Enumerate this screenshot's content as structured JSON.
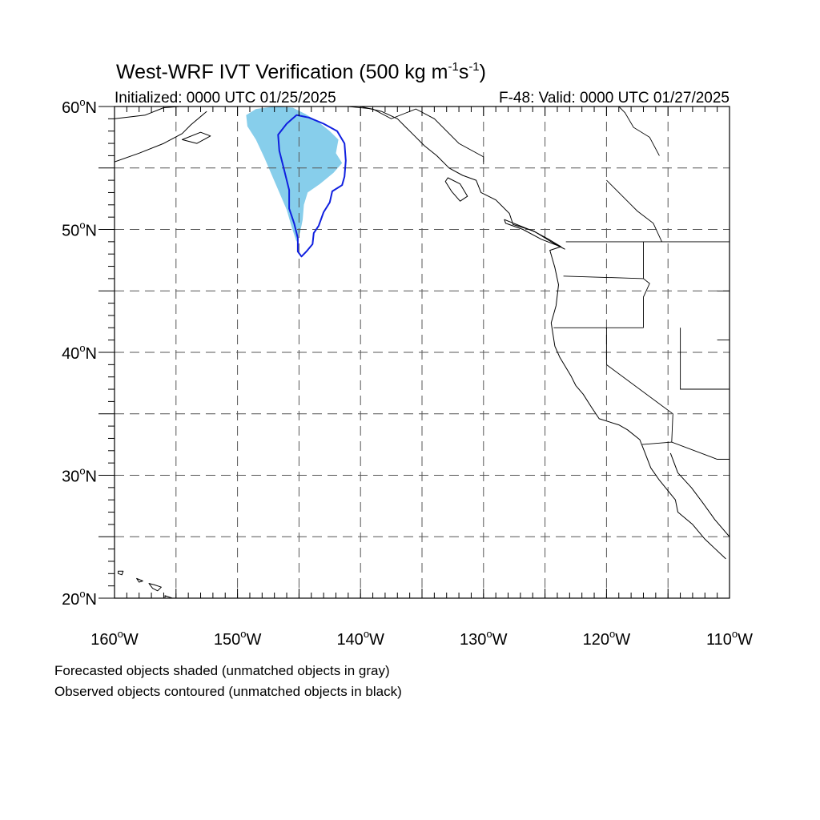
{
  "title": {
    "main": "West-WRF IVT Verification (500 kg m",
    "sup1": "-1",
    "mid": "s",
    "sup2": "-1",
    "end": ")"
  },
  "subtitle_left": "Initialized: 0000 UTC 01/25/2025",
  "subtitle_right": "F-48: Valid: 0000 UTC 01/27/2025",
  "footer": [
    "Forecasted objects shaded (unmatched objects in gray)",
    "Observed objects contoured (unmatched objects in black)"
  ],
  "chart_data": {
    "type": "map",
    "projection": "cylindrical-equidistant",
    "lon_range": [
      -160,
      -110
    ],
    "lat_range": [
      20,
      60
    ],
    "lon_ticks": [
      {
        "value": -160,
        "label": "160°W"
      },
      {
        "value": -150,
        "label": "150°W"
      },
      {
        "value": -140,
        "label": "140°W"
      },
      {
        "value": -130,
        "label": "130°W"
      },
      {
        "value": -120,
        "label": "120°W"
      },
      {
        "value": -110,
        "label": "110°W"
      }
    ],
    "lat_ticks": [
      {
        "value": 20,
        "label": "20°N"
      },
      {
        "value": 30,
        "label": "30°N"
      },
      {
        "value": 40,
        "label": "40°N"
      },
      {
        "value": 50,
        "label": "50°N"
      },
      {
        "value": 60,
        "label": "60°N"
      }
    ],
    "gridlines_lon": [
      -155,
      -150,
      -145,
      -140,
      -135,
      -130,
      -125,
      -120,
      -115
    ],
    "gridlines_lat": [
      25,
      30,
      35,
      40,
      45,
      50,
      55
    ],
    "grid": true,
    "colors": {
      "forecast_fill": "#87ceeb",
      "observed_contour": "#1020e0",
      "grid": "#555555",
      "coast": "#000000"
    },
    "forecast_object": [
      [
        -148.5,
        59.8
      ],
      [
        -147.0,
        60.0
      ],
      [
        -145.5,
        59.9
      ],
      [
        -144.5,
        59.4
      ],
      [
        -143.5,
        58.8
      ],
      [
        -142.5,
        58.0
      ],
      [
        -141.8,
        57.3
      ],
      [
        -142.0,
        56.2
      ],
      [
        -141.5,
        55.4
      ],
      [
        -142.2,
        54.6
      ],
      [
        -143.3,
        53.7
      ],
      [
        -144.3,
        53.0
      ],
      [
        -144.6,
        52.0
      ],
      [
        -144.7,
        50.8
      ],
      [
        -144.9,
        49.8
      ],
      [
        -145.2,
        49.0
      ],
      [
        -145.6,
        50.2
      ],
      [
        -146.0,
        51.6
      ],
      [
        -146.6,
        53.0
      ],
      [
        -147.2,
        54.4
      ],
      [
        -147.8,
        55.8
      ],
      [
        -148.5,
        57.3
      ],
      [
        -149.2,
        58.4
      ],
      [
        -149.3,
        59.3
      ]
    ],
    "observed_object": [
      [
        -146.0,
        58.6
      ],
      [
        -145.2,
        59.3
      ],
      [
        -144.2,
        59.1
      ],
      [
        -143.0,
        58.6
      ],
      [
        -141.9,
        58.0
      ],
      [
        -141.3,
        57.0
      ],
      [
        -141.2,
        55.6
      ],
      [
        -141.3,
        54.3
      ],
      [
        -141.5,
        53.6
      ],
      [
        -142.3,
        53.1
      ],
      [
        -142.5,
        52.2
      ],
      [
        -143.0,
        51.4
      ],
      [
        -143.4,
        50.3
      ],
      [
        -143.8,
        49.7
      ],
      [
        -143.9,
        48.8
      ],
      [
        -144.4,
        48.2
      ],
      [
        -144.8,
        47.8
      ],
      [
        -145.1,
        48.2
      ],
      [
        -145.1,
        49.3
      ],
      [
        -145.4,
        50.5
      ],
      [
        -145.8,
        51.7
      ],
      [
        -145.8,
        53.2
      ],
      [
        -146.2,
        54.8
      ],
      [
        -146.6,
        56.4
      ],
      [
        -146.7,
        57.7
      ]
    ],
    "coastline": [
      [
        -140.0,
        60.0
      ],
      [
        -138.3,
        59.6
      ],
      [
        -137.0,
        59.0
      ],
      [
        -136.3,
        58.3
      ],
      [
        -135.6,
        57.6
      ],
      [
        -134.8,
        56.8
      ],
      [
        -133.8,
        56.0
      ],
      [
        -132.8,
        55.0
      ],
      [
        -131.7,
        54.4
      ],
      [
        -130.6,
        54.0
      ],
      [
        -130.2,
        53.0
      ],
      [
        -129.0,
        52.4
      ],
      [
        -127.9,
        51.3
      ],
      [
        -127.6,
        50.4
      ],
      [
        -126.0,
        49.9
      ],
      [
        -124.7,
        49.2
      ],
      [
        -123.7,
        48.6
      ],
      [
        -124.6,
        48.3
      ],
      [
        -124.2,
        46.9
      ],
      [
        -123.9,
        45.5
      ],
      [
        -124.1,
        43.8
      ],
      [
        -124.5,
        42.4
      ],
      [
        -124.2,
        40.5
      ],
      [
        -123.8,
        39.6
      ],
      [
        -122.9,
        38.1
      ],
      [
        -122.5,
        37.3
      ],
      [
        -121.9,
        36.6
      ],
      [
        -121.2,
        35.5
      ],
      [
        -120.6,
        34.6
      ],
      [
        -119.0,
        34.1
      ],
      [
        -118.3,
        33.7
      ],
      [
        -117.3,
        32.9
      ],
      [
        -116.9,
        31.9
      ],
      [
        -116.4,
        30.6
      ],
      [
        -115.7,
        29.6
      ],
      [
        -114.4,
        28.0
      ],
      [
        -114.2,
        27.0
      ],
      [
        -113.0,
        26.0
      ],
      [
        -112.0,
        24.8
      ],
      [
        -110.3,
        23.2
      ]
    ],
    "gulf_coast": [
      [
        -114.8,
        31.8
      ],
      [
        -114.2,
        30.2
      ],
      [
        -113.1,
        29.0
      ],
      [
        -112.2,
        27.8
      ],
      [
        -111.2,
        26.4
      ],
      [
        -110.0,
        25.0
      ]
    ],
    "vancouver_island": [
      [
        -128.3,
        50.8
      ],
      [
        -127.3,
        50.4
      ],
      [
        -125.8,
        49.8
      ],
      [
        -124.5,
        49.0
      ],
      [
        -123.4,
        48.4
      ],
      [
        -124.0,
        48.7
      ],
      [
        -125.3,
        49.2
      ],
      [
        -126.8,
        50.0
      ],
      [
        -128.2,
        50.5
      ]
    ],
    "haida_gwaii": [
      [
        -132.9,
        54.2
      ],
      [
        -131.9,
        53.7
      ],
      [
        -131.3,
        52.7
      ],
      [
        -131.9,
        52.3
      ],
      [
        -132.6,
        53.1
      ],
      [
        -133.1,
        53.9
      ]
    ],
    "alaska_sw_coast": [
      [
        -160.0,
        59.0
      ],
      [
        -157.5,
        59.3
      ],
      [
        -156.0,
        59.9
      ],
      [
        -154.7,
        60.0
      ]
    ],
    "kodiak": [
      [
        -154.5,
        57.3
      ],
      [
        -153.0,
        57.9
      ],
      [
        -152.2,
        57.6
      ],
      [
        -153.3,
        57.0
      ]
    ],
    "alaska_peninsula": [
      [
        -160.0,
        55.5
      ],
      [
        -158.0,
        56.2
      ],
      [
        -156.0,
        57.0
      ],
      [
        -154.5,
        57.8
      ],
      [
        -153.8,
        58.5
      ],
      [
        -152.5,
        59.6
      ]
    ],
    "hawaii": [
      [
        [
          -159.7,
          22.2
        ],
        [
          -159.3,
          22.2
        ],
        [
          -159.4,
          21.9
        ],
        [
          -159.7,
          22.0
        ]
      ],
      [
        [
          -158.2,
          21.6
        ],
        [
          -157.7,
          21.4
        ],
        [
          -158.0,
          21.3
        ]
      ],
      [
        [
          -157.2,
          21.2
        ],
        [
          -156.8,
          21.1
        ],
        [
          -156.2,
          20.9
        ],
        [
          -156.5,
          20.6
        ],
        [
          -156.9,
          20.8
        ]
      ],
      [
        [
          -155.9,
          20.2
        ],
        [
          -155.0,
          19.9
        ],
        [
          -154.8,
          19.5
        ],
        [
          -155.6,
          18.9
        ],
        [
          -155.9,
          19.3
        ]
      ]
    ],
    "borders": [
      [
        [
          -123.3,
          49.0
        ],
        [
          -110.0,
          49.0
        ]
      ],
      [
        [
          -124.3,
          42.0
        ],
        [
          -117.0,
          42.0
        ]
      ],
      [
        [
          -117.0,
          42.0
        ],
        [
          -117.0,
          44.5
        ],
        [
          -116.5,
          45.6
        ],
        [
          -117.0,
          46.0
        ],
        [
          -123.5,
          46.2
        ]
      ],
      [
        [
          -117.0,
          49.0
        ],
        [
          -117.0,
          46.0
        ]
      ],
      [
        [
          -120.0,
          42.0
        ],
        [
          -120.0,
          39.0
        ],
        [
          -114.6,
          35.0
        ],
        [
          -114.7,
          32.7
        ]
      ],
      [
        [
          -114.0,
          42.0
        ],
        [
          -114.0,
          37.0
        ],
        [
          -110.0,
          37.0
        ]
      ],
      [
        [
          -111.0,
          45.0
        ],
        [
          -110.0,
          45.0
        ]
      ],
      [
        [
          -111.0,
          41.0
        ],
        [
          -110.0,
          41.0
        ]
      ],
      [
        [
          -117.1,
          32.5
        ],
        [
          -114.7,
          32.7
        ],
        [
          -111.0,
          31.3
        ],
        [
          -110.0,
          31.3
        ]
      ],
      [
        [
          -115.7,
          56.0
        ],
        [
          -116.5,
          57.5
        ],
        [
          -117.8,
          58.3
        ],
        [
          -118.5,
          59.5
        ],
        [
          -119.0,
          60.0
        ]
      ],
      [
        [
          -120.0,
          54.0
        ],
        [
          -119.0,
          53.0
        ],
        [
          -117.5,
          51.5
        ],
        [
          -116.2,
          50.5
        ],
        [
          -115.5,
          49.0
        ]
      ],
      [
        [
          -141.0,
          60.0
        ],
        [
          -139.0,
          59.8
        ],
        [
          -137.5,
          59.0
        ],
        [
          -135.5,
          59.8
        ],
        [
          -134.0,
          59.0
        ],
        [
          -132.0,
          57.0
        ],
        [
          -130.0,
          55.9
        ],
        [
          -130.0,
          55.3
        ]
      ]
    ]
  }
}
